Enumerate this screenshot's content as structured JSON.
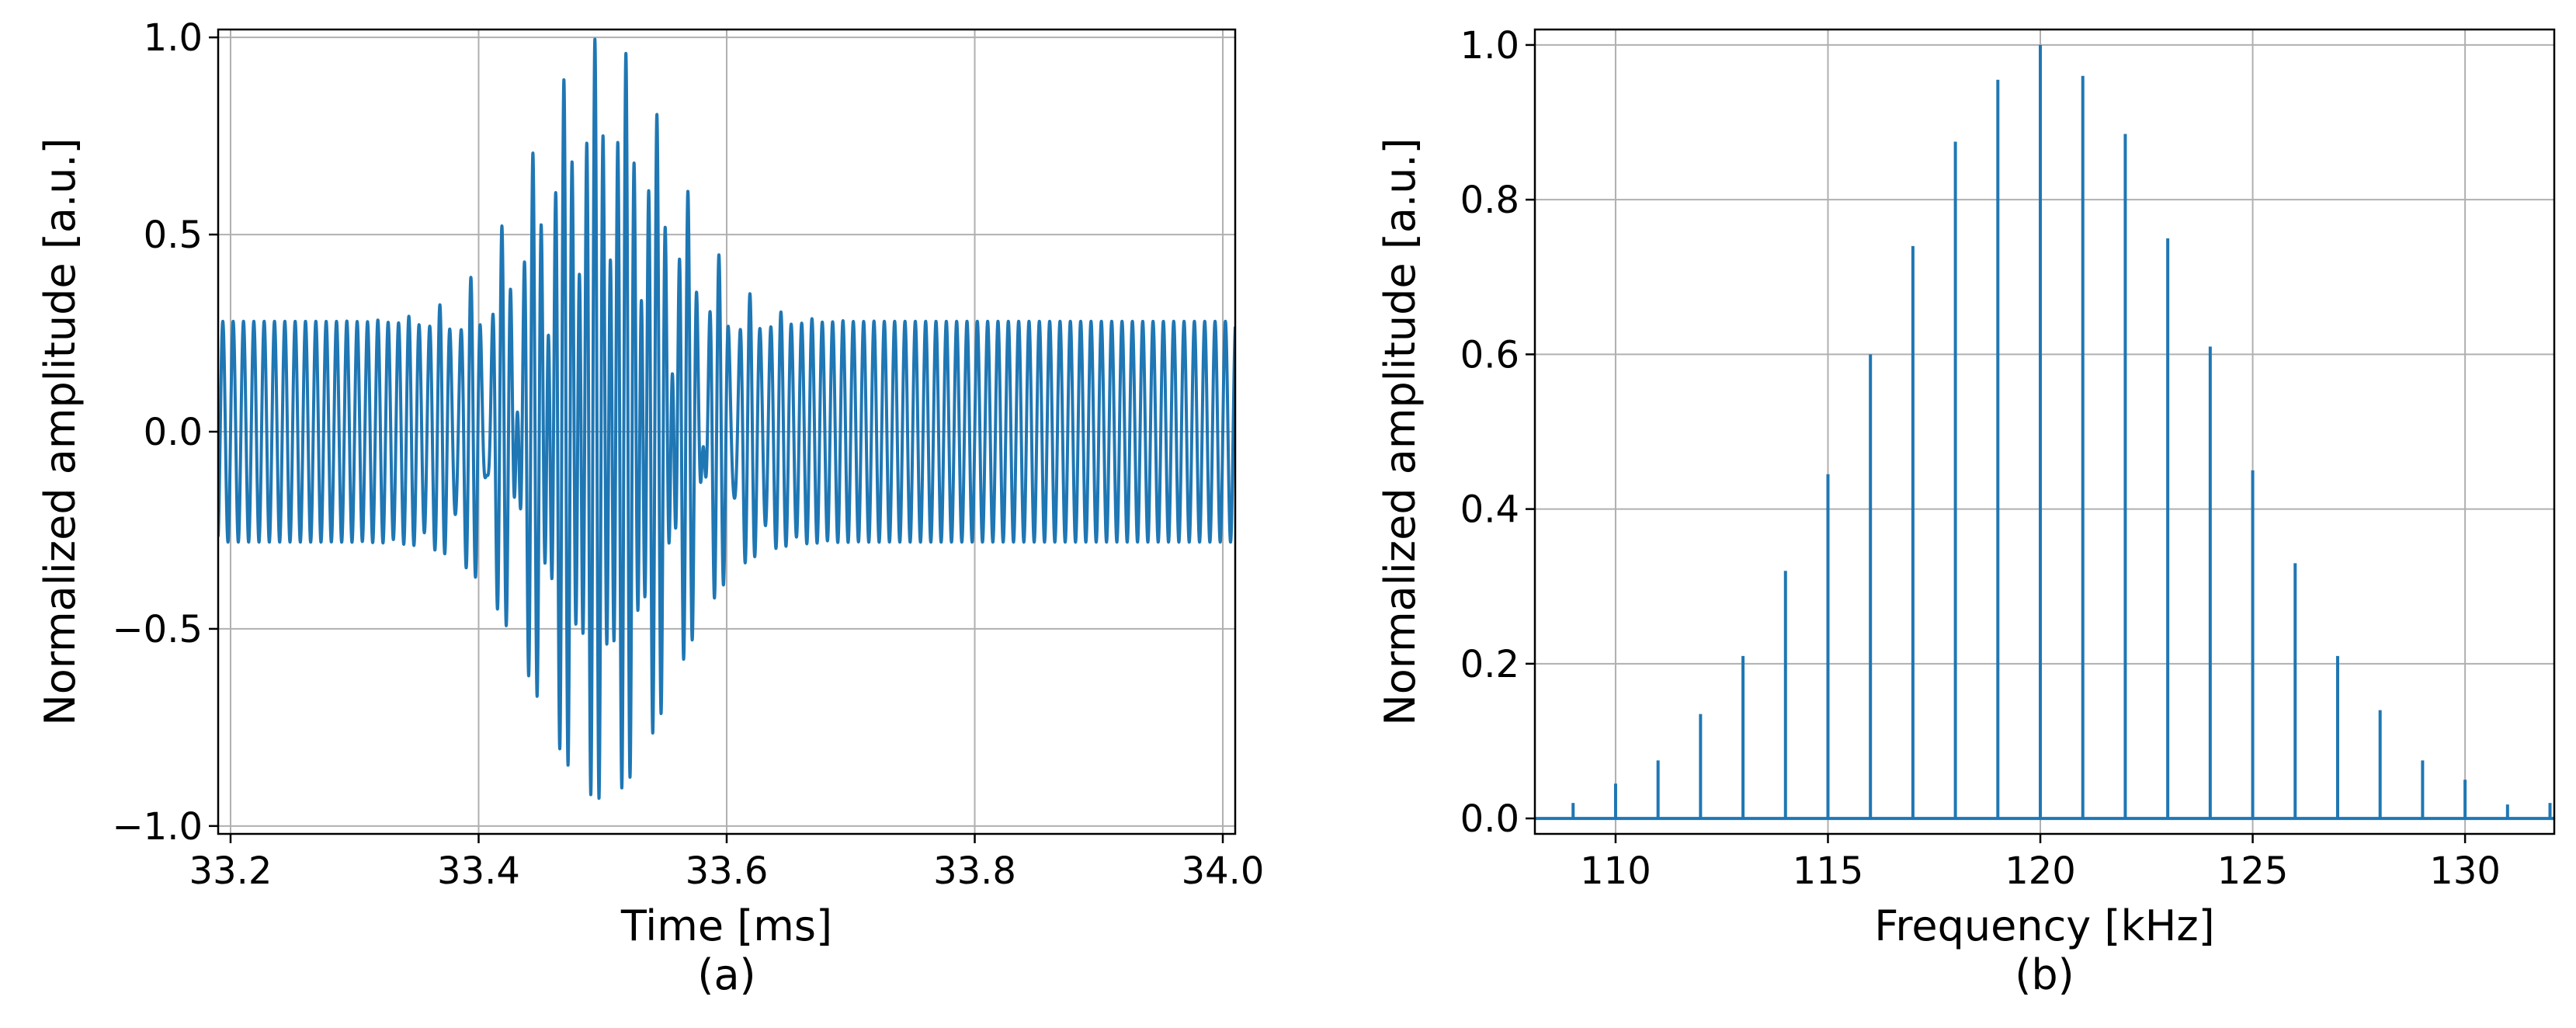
{
  "colors": {
    "series": "#1f77b4",
    "grid": "#b0b0b0",
    "axes": "#000000",
    "background": "#ffffff"
  },
  "chart_data": [
    {
      "type": "line",
      "caption": "(a)",
      "xlabel": "Time [ms]",
      "ylabel": "Normalized amplitude [a.u.]",
      "xlim": [
        33.19,
        34.01
      ],
      "ylim": [
        -1.02,
        1.02
      ],
      "xticks": [
        33.2,
        33.4,
        33.6,
        33.8,
        34.0
      ],
      "xtick_labels": [
        "33.2",
        "33.4",
        "33.6",
        "33.8",
        "34.0"
      ],
      "yticks": [
        -1.0,
        -0.5,
        0.0,
        0.5,
        1.0
      ],
      "ytick_labels": [
        "−1.0",
        "−0.5",
        "0.0",
        "0.5",
        "1.0"
      ],
      "grid": true,
      "signal": {
        "carrier_frequency_khz": 120,
        "baseline_envelope": 0.28,
        "burst_center_ms": 33.5,
        "burst_peak": 1.0,
        "burst_width_ms": 0.055,
        "burst_frequency_khz": 160,
        "x_range_ms": [
          33.19,
          34.01
        ]
      }
    },
    {
      "type": "bar",
      "caption": "(b)",
      "xlabel": "Frequency [kHz]",
      "ylabel": "Normalized amplitude [a.u.]",
      "xlim": [
        108.1,
        132.1
      ],
      "ylim": [
        -0.02,
        1.02
      ],
      "xticks": [
        110,
        115,
        120,
        125,
        130
      ],
      "xtick_labels": [
        "110",
        "115",
        "120",
        "125",
        "130"
      ],
      "yticks": [
        0.0,
        0.2,
        0.4,
        0.6,
        0.8,
        1.0
      ],
      "ytick_labels": [
        "0.0",
        "0.2",
        "0.4",
        "0.6",
        "0.8",
        "1.0"
      ],
      "grid": true,
      "x": [
        109,
        110,
        111,
        112,
        113,
        114,
        115,
        116,
        117,
        118,
        119,
        120,
        121,
        122,
        123,
        124,
        125,
        126,
        127,
        128,
        129,
        130,
        131,
        132
      ],
      "values": [
        0.02,
        0.045,
        0.075,
        0.135,
        0.21,
        0.32,
        0.445,
        0.6,
        0.74,
        0.875,
        0.955,
        1.0,
        0.96,
        0.885,
        0.75,
        0.61,
        0.45,
        0.33,
        0.21,
        0.14,
        0.075,
        0.05,
        0.018,
        0.02
      ]
    }
  ]
}
